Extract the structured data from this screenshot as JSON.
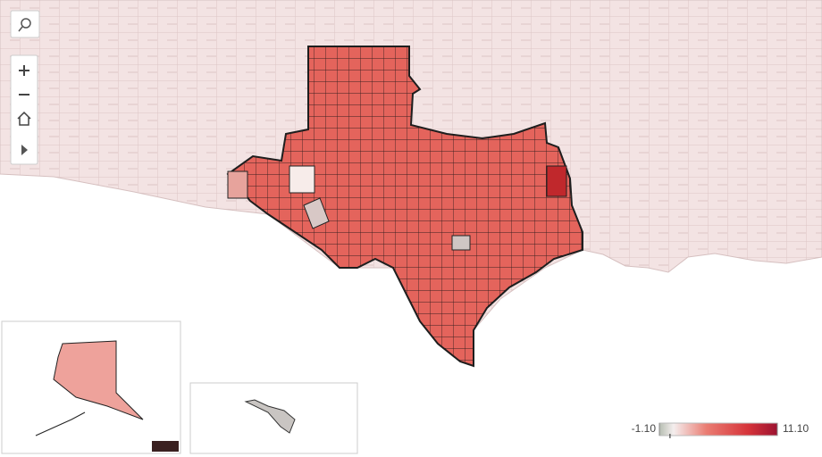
{
  "legend": {
    "min": {
      "value": -1.1,
      "label": "-1.10"
    },
    "max": {
      "value": 11.1,
      "label": "11.10"
    }
  }
}
